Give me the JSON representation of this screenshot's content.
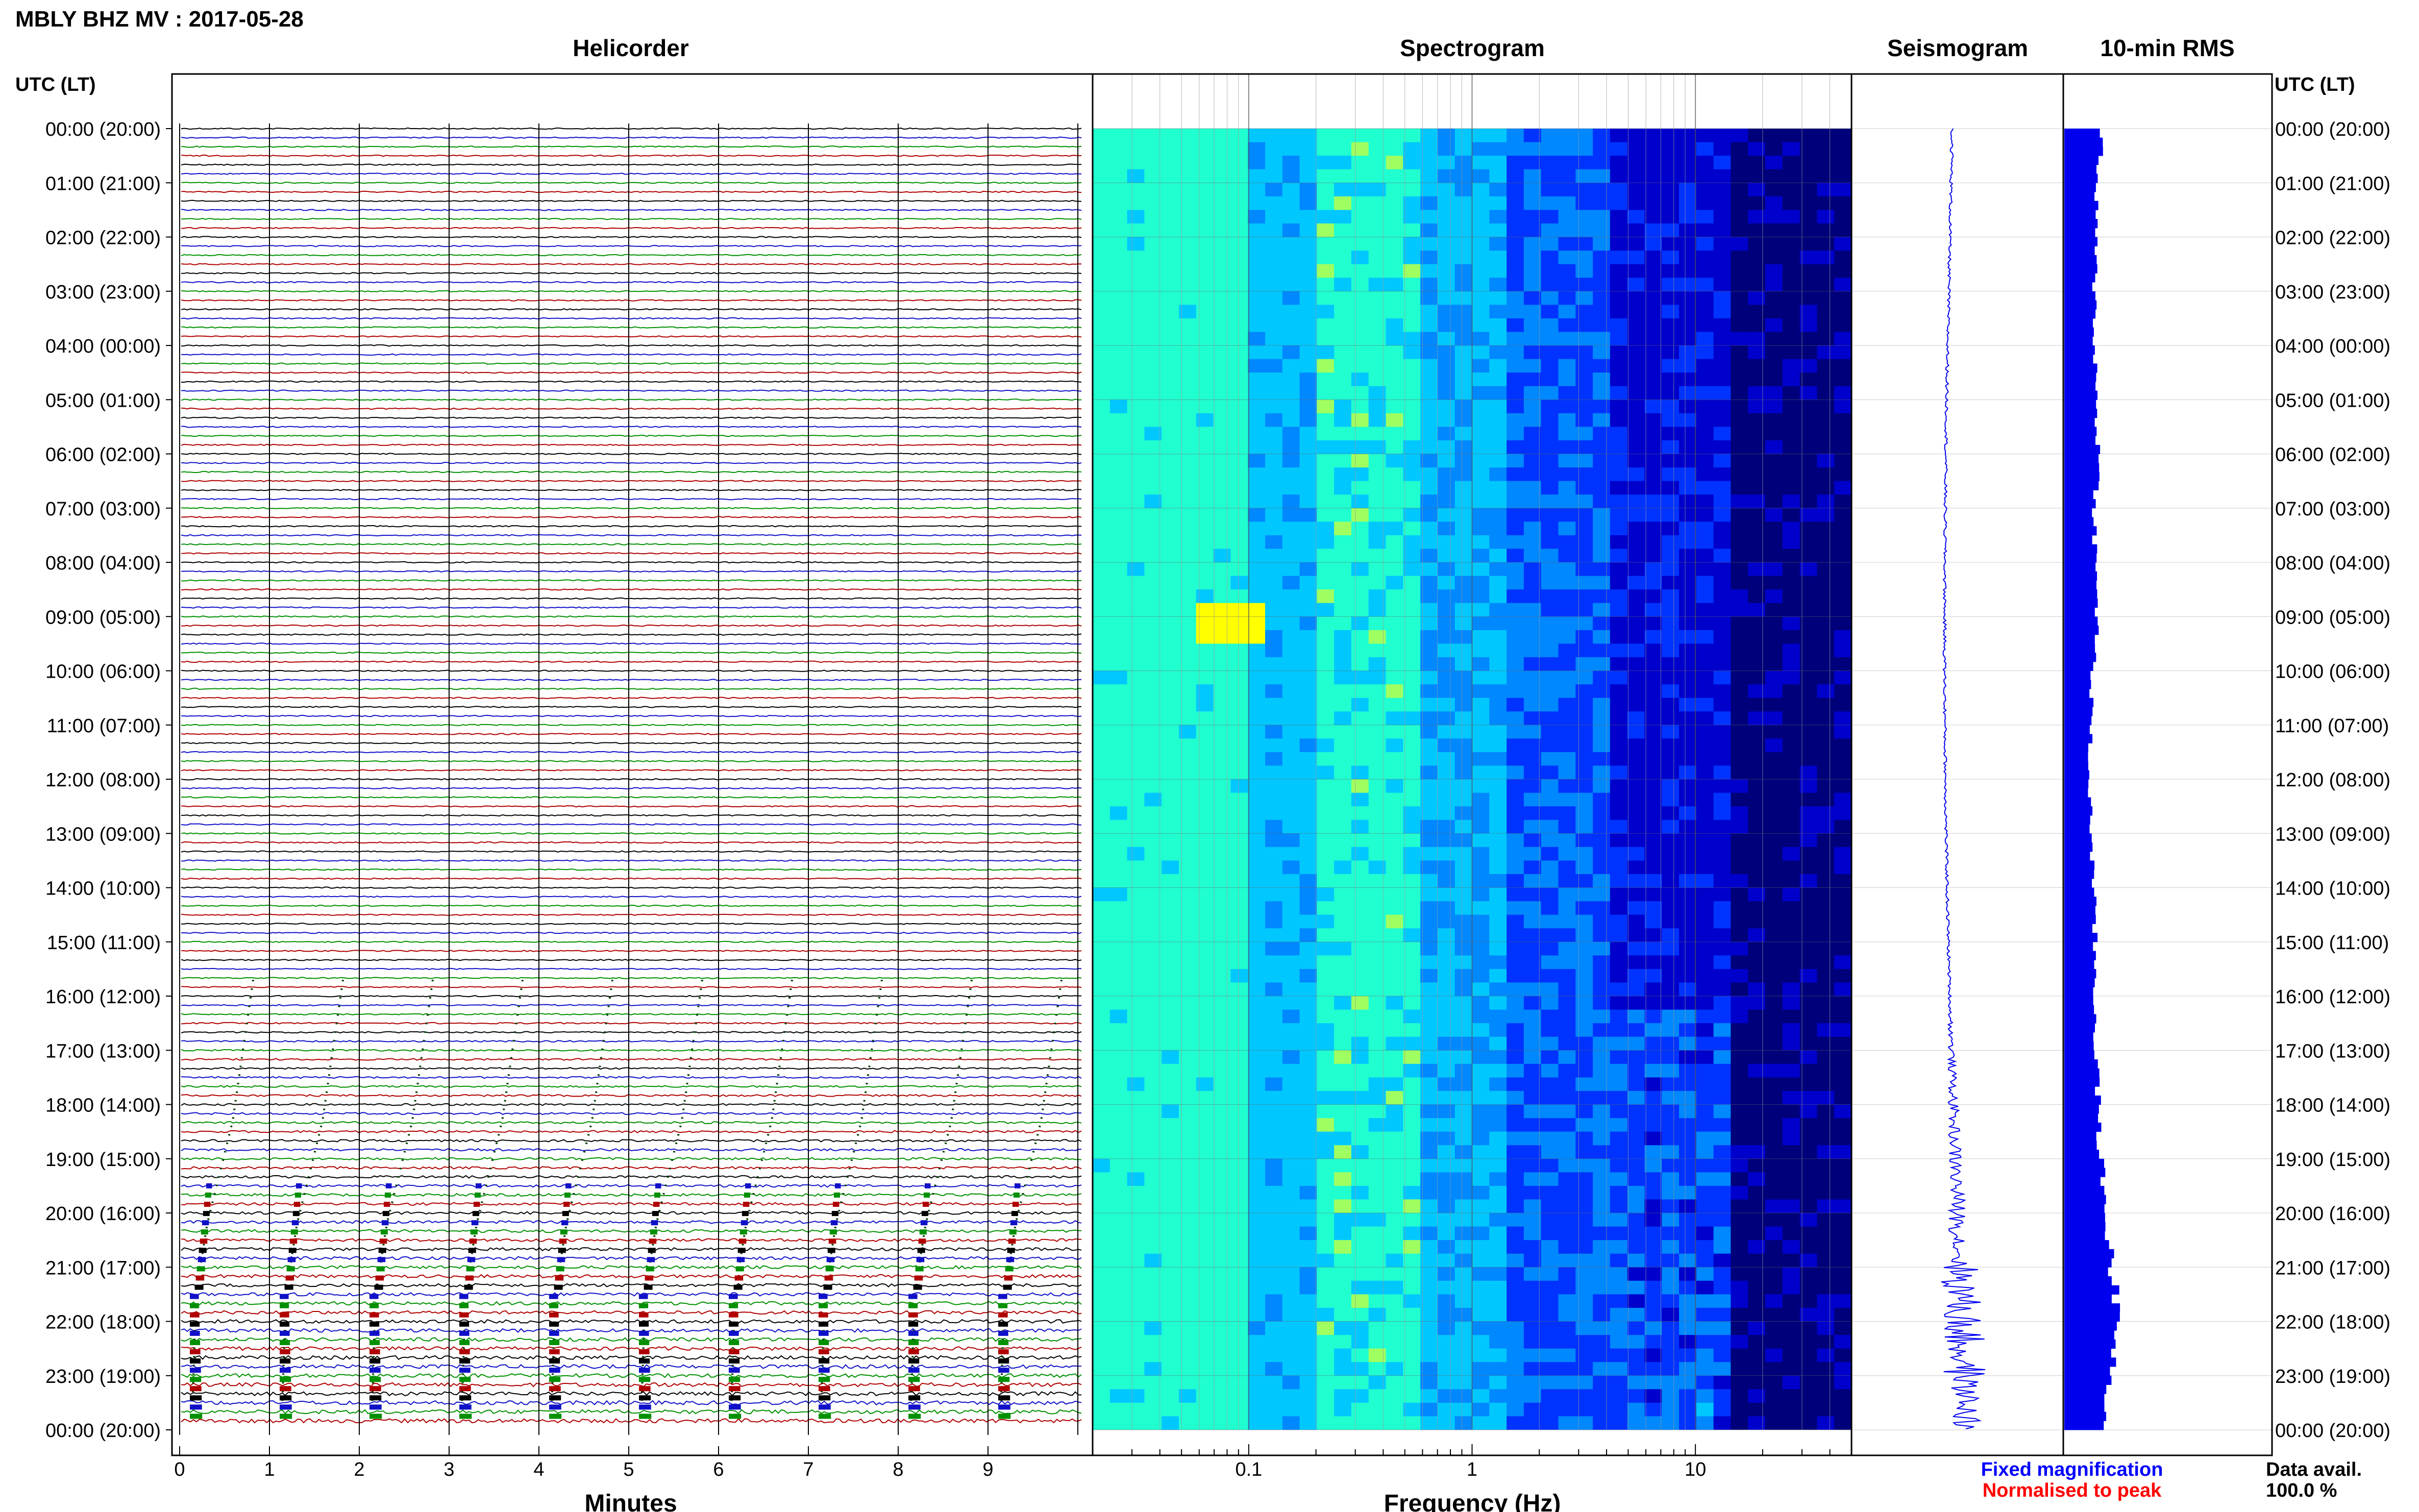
{
  "header": {
    "station_title": "MBLY BHZ MV : 2017-05-28",
    "panel_titles": [
      "Helicorder",
      "Spectrogram",
      "Seismogram",
      "10-min RMS"
    ],
    "time_axis_label": "UTC (LT)"
  },
  "footer": {
    "fixed_magnification": "Fixed magnification",
    "normalised_to_peak": "Normalised to peak",
    "data_avail_label": "Data avail.",
    "data_avail_value": "100.0 %"
  },
  "colors": {
    "trace_cycle": [
      "#000000",
      "#1010c8",
      "#009000",
      "#b00000"
    ],
    "fixed_magnification": "#0000ff",
    "normalised_to_peak": "#ff0000",
    "rms_bar": "#0000ee",
    "seismogram": "#0000ee"
  },
  "chart_data": [
    {
      "type": "line",
      "panel": "Helicorder",
      "xlabel": "Minutes",
      "xlim": [
        0,
        10
      ],
      "x_ticks": [
        0,
        1,
        2,
        3,
        4,
        5,
        6,
        7,
        8,
        9
      ],
      "rows_per_hour": 6,
      "row_count": 144,
      "y_tick_labels": [
        "00:00 (20:00)",
        "01:00 (21:00)",
        "02:00 (22:00)",
        "03:00 (23:00)",
        "04:00 (00:00)",
        "05:00 (01:00)",
        "06:00 (02:00)",
        "07:00 (03:00)",
        "08:00 (04:00)",
        "09:00 (05:00)",
        "10:00 (06:00)",
        "11:00 (07:00)",
        "12:00 (08:00)",
        "13:00 (09:00)",
        "14:00 (10:00)",
        "15:00 (11:00)",
        "16:00 (12:00)",
        "17:00 (13:00)",
        "18:00 (14:00)",
        "19:00 (15:00)",
        "20:00 (16:00)",
        "21:00 (17:00)",
        "22:00 (18:00)",
        "23:00 (19:00)",
        "00:00 (20:00)"
      ]
    },
    {
      "type": "heatmap",
      "panel": "Spectrogram",
      "xlabel": "Frequency (Hz)",
      "x_scale": "log",
      "xlim": [
        0.02,
        50
      ],
      "x_ticks": [
        0.1,
        1,
        10
      ],
      "x_tick_labels": [
        "0.1",
        "1",
        "10"
      ],
      "colormap": [
        "#00007a",
        "#0000cc",
        "#0033ff",
        "#0088ff",
        "#00c8ff",
        "#20ffd0",
        "#a0ff60",
        "#ffff00"
      ],
      "grid": true
    },
    {
      "type": "line",
      "panel": "Seismogram",
      "y_tick_labels_right": [
        "00:00 (20:00)",
        "01:00 (21:00)",
        "02:00 (22:00)",
        "03:00 (23:00)",
        "04:00 (00:00)",
        "05:00 (01:00)",
        "06:00 (02:00)",
        "07:00 (03:00)",
        "08:00 (04:00)",
        "09:00 (05:00)",
        "10:00 (06:00)",
        "11:00 (07:00)",
        "12:00 (08:00)",
        "13:00 (09:00)",
        "14:00 (10:00)",
        "15:00 (11:00)",
        "16:00 (12:00)",
        "17:00 (13:00)",
        "18:00 (14:00)",
        "19:00 (15:00)",
        "20:00 (16:00)",
        "21:00 (17:00)",
        "22:00 (18:00)",
        "23:00 (19:00)",
        "00:00 (20:00)"
      ]
    },
    {
      "type": "bar",
      "panel": "10-min RMS",
      "orientation": "horizontal",
      "hours": [
        0,
        1,
        2,
        3,
        4,
        5,
        6,
        7,
        8,
        9,
        10,
        11,
        12,
        13,
        14,
        15,
        16,
        17,
        18,
        19,
        20,
        21,
        22,
        23,
        24
      ],
      "rms_relative": [
        0.48,
        0.42,
        0.4,
        0.4,
        0.4,
        0.42,
        0.45,
        0.4,
        0.4,
        0.44,
        0.36,
        0.34,
        0.32,
        0.36,
        0.38,
        0.4,
        0.4,
        0.42,
        0.44,
        0.48,
        0.55,
        0.62,
        0.75,
        0.6,
        0.45
      ]
    }
  ]
}
